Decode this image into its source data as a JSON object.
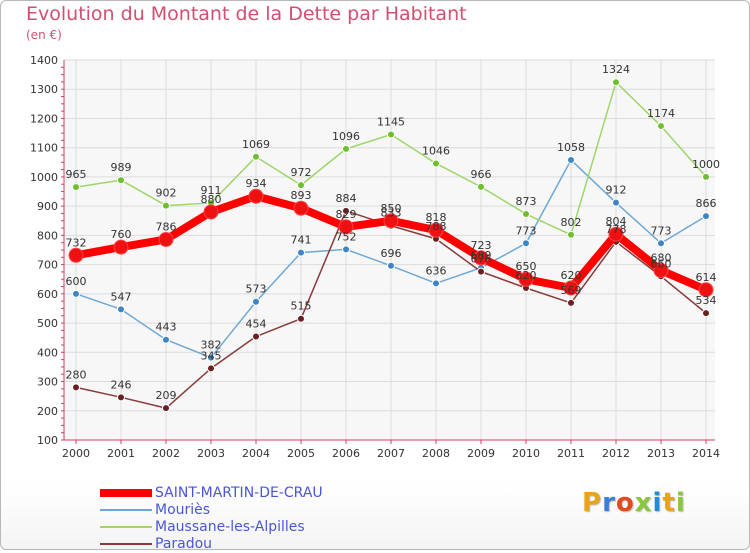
{
  "header": {
    "title": "Evolution du Montant de la Dette par Habitant",
    "unit": "(en €)"
  },
  "branding": {
    "logo_text": "Proxiti",
    "logo_colors": [
      "#e8a317",
      "#3a7fd0",
      "#e04b20",
      "#8cc63f",
      "#1e8fd6",
      "#e8a317",
      "#8cc63f"
    ]
  },
  "chart_data": {
    "type": "line",
    "title": "Evolution du Montant de la Dette par Habitant",
    "subtitle": "(en €)",
    "xlabel": "",
    "ylabel": "",
    "ylim": [
      100,
      1400
    ],
    "yticks": [
      100,
      200,
      300,
      400,
      500,
      600,
      700,
      800,
      900,
      1000,
      1100,
      1200,
      1300,
      1400
    ],
    "grid": true,
    "legend_position": "bottom-left",
    "categories": [
      "2000",
      "2001",
      "2002",
      "2003",
      "2004",
      "2005",
      "2006",
      "2007",
      "2008",
      "2009",
      "2010",
      "2011",
      "2012",
      "2013",
      "2014"
    ],
    "series": [
      {
        "name": "SAINT-MARTIN-DE-CRAU",
        "color": "#ff0000",
        "marker_color": "#ee1111",
        "emphasis": true,
        "values": [
          732,
          760,
          786,
          880,
          934,
          893,
          829,
          850,
          818,
          723,
          650,
          620,
          804,
          680,
          614
        ],
        "labels": [
          "732",
          "760",
          "786",
          "880",
          "934",
          "893",
          "829",
          "850",
          "818",
          "723",
          "650",
          "620",
          "804",
          "680",
          "614"
        ]
      },
      {
        "name": "Mouriès",
        "color": "#6fa8d6",
        "marker_color": "#3d86c6",
        "emphasis": false,
        "values": [
          600,
          547,
          443,
          382,
          573,
          741,
          752,
          696,
          636,
          689,
          773,
          1058,
          912,
          773,
          866
        ],
        "labels": [
          "600",
          "547",
          "443",
          "382",
          "573",
          "741",
          "752",
          "696",
          "636",
          "689",
          "773",
          "1058",
          "912",
          "773",
          "866"
        ]
      },
      {
        "name": "Maussane-les-Alpilles",
        "color": "#9ed66a",
        "marker_color": "#6cc02c",
        "emphasis": false,
        "values": [
          965,
          989,
          902,
          911,
          1069,
          972,
          1096,
          1145,
          1046,
          966,
          873,
          802,
          1324,
          1174,
          1000
        ],
        "labels": [
          "965",
          "989",
          "902",
          "911",
          "1069",
          "972",
          "1096",
          "1145",
          "1046",
          "966",
          "873",
          "802",
          "1324",
          "1174",
          "1000"
        ]
      },
      {
        "name": "Paradou",
        "color": "#8a3a3a",
        "marker_color": "#6b2020",
        "emphasis": false,
        "values": [
          280,
          246,
          209,
          345,
          454,
          515,
          884,
          833,
          788,
          676,
          620,
          569,
          778,
          660,
          534
        ],
        "labels": [
          "280",
          "246",
          "209",
          "345",
          "454",
          "515",
          "884",
          "833",
          "788",
          "676",
          "620",
          "569",
          "778",
          "660",
          "534"
        ]
      }
    ]
  }
}
